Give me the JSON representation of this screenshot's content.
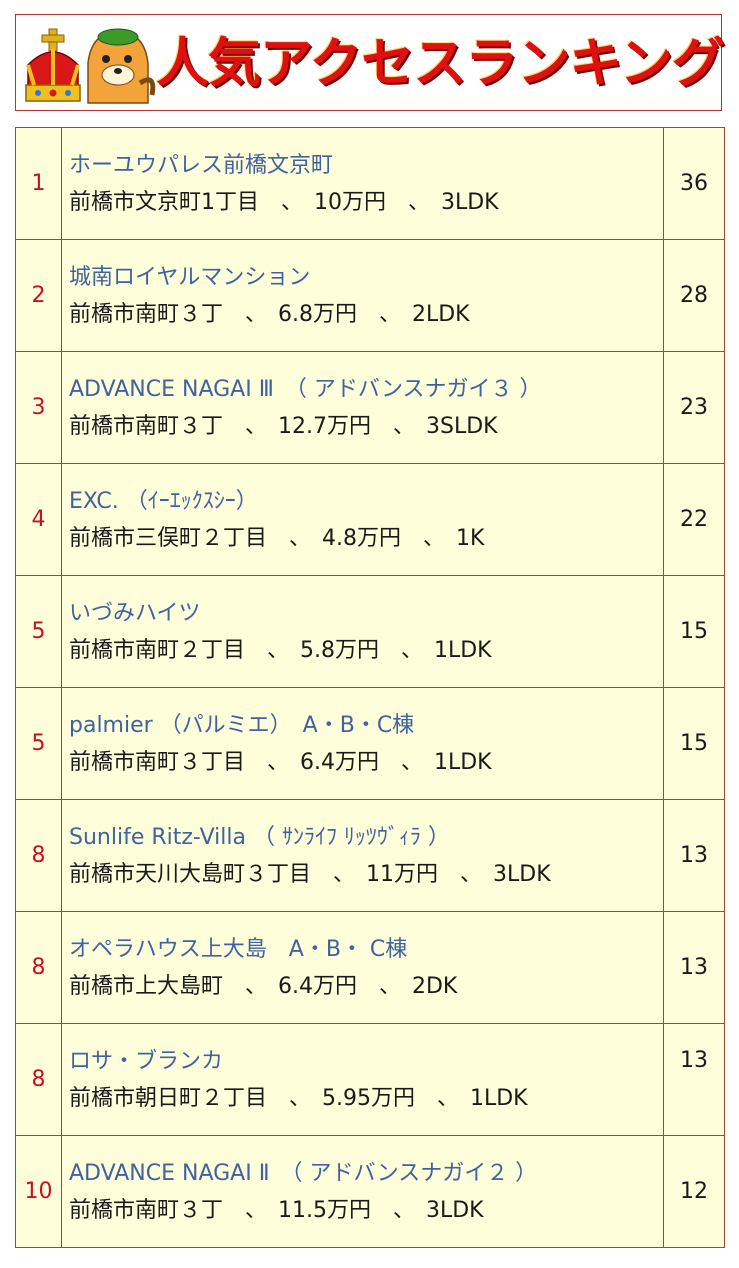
{
  "header": {
    "title": "人気アクセスランキング"
  },
  "rows": [
    {
      "rank": "1",
      "name": "ホーユウパレス前橋文京町",
      "detail": "前橋市文京町1丁目　、　10万円　、　3LDK",
      "count": "36"
    },
    {
      "rank": "2",
      "name": "城南ロイヤルマンション",
      "detail": "前橋市南町３丁　、　6.8万円　、　2LDK",
      "count": "28"
    },
    {
      "rank": "3",
      "name": "ADVANCE NAGAI Ⅲ　（ アドバンスナガイ３ ）",
      "detail": "前橋市南町３丁　、　12.7万円　、　3SLDK",
      "count": "23"
    },
    {
      "rank": "4",
      "name": "EXC. （ｲｰｴｯｸｽｼｰ）",
      "detail": "前橋市三俣町２丁目　、　4.8万円　、　1K",
      "count": "22"
    },
    {
      "rank": "5",
      "name": "いづみハイツ",
      "detail": "前橋市南町２丁目　、　5.8万円　、　1LDK",
      "count": "15"
    },
    {
      "rank": "5",
      "name": "palmier （パルミエ）　A・B・C棟",
      "detail": "前橋市南町３丁目　、　6.4万円　、　1LDK",
      "count": "15"
    },
    {
      "rank": "8",
      "name": "Sunlife Ritz-Villa （ ｻﾝﾗｲﾌ ﾘｯﾂｳﾞｨﾗ ）",
      "detail": "前橋市天川大島町３丁目　、　11万円　、　3LDK",
      "count": "13"
    },
    {
      "rank": "8",
      "name": "オペラハウス上大島　A・B・ C棟",
      "detail": "前橋市上大島町　、　6.4万円　、　2DK",
      "count": "13"
    },
    {
      "rank": "8",
      "name": "ロサ・ブランカ",
      "detail": "前橋市朝日町２丁目　、　5.95万円　、　1LDK",
      "count": "13"
    },
    {
      "rank": "10",
      "name": "ADVANCE NAGAI Ⅱ　（ アドバンスナガイ２ ）",
      "detail": "前橋市南町３丁　、　11.5万円　、　3LDK",
      "count": "12"
    }
  ],
  "icons": {
    "crown": "crown-icon",
    "mascot": "mascot-icon"
  },
  "colors": {
    "border": "#a8433b",
    "rank": "#c8101e",
    "name": "#3f62a1",
    "cell_bg": "#fffedb",
    "title": "#e01010"
  }
}
